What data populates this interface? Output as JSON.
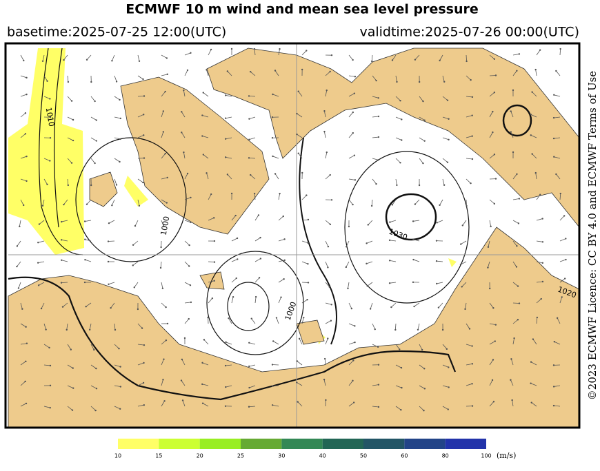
{
  "header": {
    "title": "ECMWF 10 m wind and mean sea level pressure",
    "basetime": "basetime:2025-07-25 12:00(UTC)",
    "validtime": "validtime:2025-07-26 00:00(UTC)"
  },
  "credit": "©2023 ECMWF Licence: CC BY 4.0 and ECMWF Terms of Use",
  "isobar_labels": [
    "1010",
    "1000",
    "1030",
    "1000",
    "1020"
  ],
  "colorbar": {
    "ticks": [
      10,
      15,
      20,
      25,
      30,
      40,
      50,
      60,
      80,
      100
    ],
    "colors": [
      "#ffff66",
      "#ccff33",
      "#99ee22",
      "#66aa33",
      "#338855",
      "#226655",
      "#225566",
      "#224488",
      "#2233aa"
    ],
    "unit": "(m/s)"
  }
}
